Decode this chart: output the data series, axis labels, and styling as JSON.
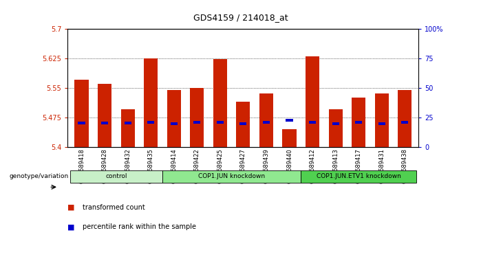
{
  "title": "GDS4159 / 214018_at",
  "samples": [
    "GSM689418",
    "GSM689428",
    "GSM689432",
    "GSM689435",
    "GSM689414",
    "GSM689422",
    "GSM689425",
    "GSM689427",
    "GSM689439",
    "GSM689440",
    "GSM689412",
    "GSM689413",
    "GSM689417",
    "GSM689431",
    "GSM689438"
  ],
  "red_values": [
    5.57,
    5.56,
    5.495,
    5.625,
    5.545,
    5.55,
    5.622,
    5.515,
    5.535,
    5.445,
    5.63,
    5.495,
    5.525,
    5.535,
    5.545
  ],
  "blue_values": [
    5.46,
    5.46,
    5.46,
    5.462,
    5.458,
    5.462,
    5.462,
    5.458,
    5.462,
    5.468,
    5.462,
    5.458,
    5.462,
    5.458,
    5.462
  ],
  "y_min": 5.4,
  "y_max": 5.7,
  "y_ticks_left": [
    5.4,
    5.475,
    5.55,
    5.625,
    5.7
  ],
  "y_ticks_right": [
    0,
    25,
    50,
    75,
    100
  ],
  "groups": [
    {
      "label": "control",
      "start": 0,
      "end": 4,
      "color": "#c8f0c8"
    },
    {
      "label": "COP1.JUN knockdown",
      "start": 4,
      "end": 10,
      "color": "#90e890"
    },
    {
      "label": "COP1.JUN.ETV1 knockdown",
      "start": 10,
      "end": 15,
      "color": "#50d050"
    }
  ],
  "bar_color": "#cc2200",
  "blue_color": "#0000cc",
  "bar_width": 0.6,
  "tick_color_left": "#cc2200",
  "tick_color_right": "#0000cc",
  "genotype_label": "genotype/variation",
  "legend_red_label": "transformed count",
  "legend_blue_label": "percentile rank within the sample"
}
